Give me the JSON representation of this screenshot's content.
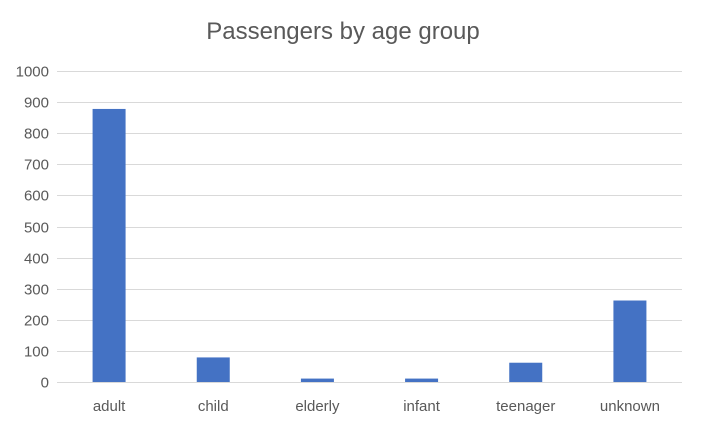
{
  "chart_data": {
    "type": "bar",
    "title": "Passengers by age group",
    "xlabel": "",
    "ylabel": "",
    "categories": [
      "adult",
      "child",
      "elderly",
      "infant",
      "teenager",
      "unknown"
    ],
    "values": [
      878,
      79,
      11,
      11,
      62,
      262
    ],
    "ylim": [
      0,
      1000
    ],
    "yticks": [
      0,
      100,
      200,
      300,
      400,
      500,
      600,
      700,
      800,
      900,
      1000
    ],
    "grid": true,
    "legend": "none",
    "bar_color": "#4472c4"
  }
}
